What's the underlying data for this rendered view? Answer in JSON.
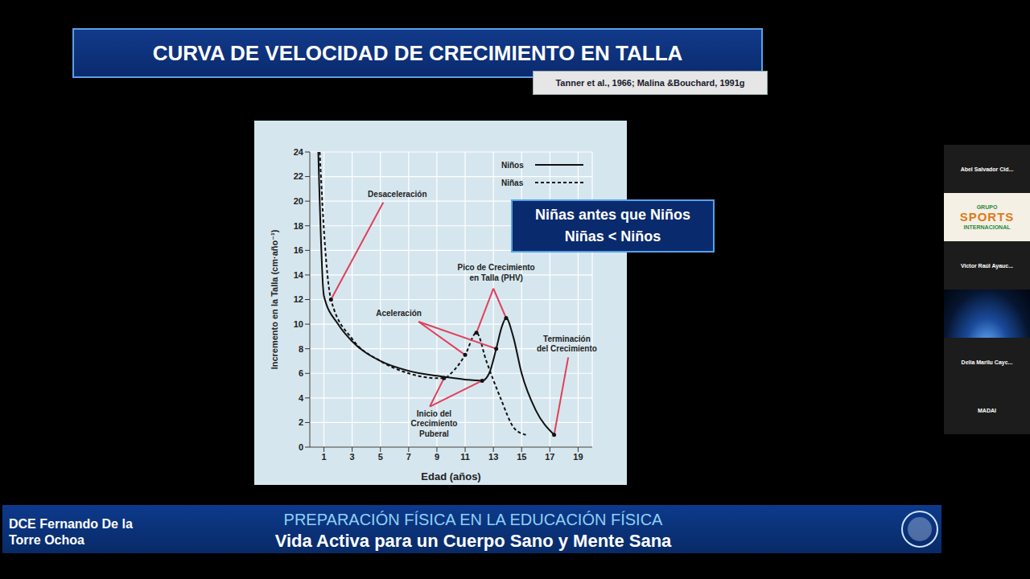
{
  "chart_data": {
    "type": "line",
    "title": "CURVA DE VELOCIDAD DE CRECIMIENTO EN TALLA",
    "x_label": "Edad (años)",
    "y_label": "Incremento en la Talla (cm·año⁻¹)",
    "xlim": [
      0,
      20
    ],
    "xticks": [
      1,
      3,
      5,
      7,
      9,
      11,
      13,
      15,
      17,
      19
    ],
    "ylim": [
      0,
      24
    ],
    "yticks": [
      0,
      2,
      4,
      6,
      8,
      10,
      12,
      14,
      16,
      18,
      20,
      22,
      24
    ],
    "grid": true,
    "legend": "top-right",
    "series": [
      {
        "name": "Niños",
        "color": "#111111",
        "line_style": "solid",
        "x": [
          0.6,
          1,
          2,
          3,
          5,
          7,
          9,
          11,
          12.2,
          12.7,
          13.2,
          13.6,
          13.9,
          14.4,
          15,
          16,
          17.3
        ],
        "values": [
          24,
          12.3,
          10,
          8.6,
          7,
          6.2,
          5.8,
          5.5,
          5.4,
          6,
          8,
          9.8,
          10.5,
          9,
          6,
          3,
          1
        ]
      },
      {
        "name": "Niñas",
        "color": "#111111",
        "line_style": "dashed",
        "x": [
          0.7,
          1.1,
          1.5,
          3,
          5,
          7,
          9,
          9.5,
          10,
          11,
          11.8,
          12.5,
          13.5,
          14.5,
          15.3
        ],
        "values": [
          24,
          16,
          12,
          8.8,
          7,
          6,
          5.6,
          5.6,
          6,
          7.5,
          9.3,
          7,
          4,
          1.5,
          1
        ]
      }
    ],
    "annotations": [
      "Desaceleración",
      "Aceleración",
      "Pico de Crecimiento\nen Talla (PHV)",
      "Inicio del\nCrecimiento\nPuberal",
      "Terminación\ndel Crecimiento"
    ]
  },
  "page": {
    "source": "Tanner et al., 1966; Malina &Bouchard, 1991g",
    "callout": [
      "Niñas antes que Niños",
      "Niñas < Niños"
    ],
    "presenter": "DCE Fernando De la Torre Ochoa",
    "footer_title": "PREPARACIÓN FÍSICA EN LA EDUCACIÓN FÍSICA",
    "footer_subtitle": "Vida Activa para un Cuerpo Sano y Mente Sana",
    "participants": [
      "Abel Salvador Cid...",
      "Victor Raúl Ayauc...",
      "Delia Marilu Cayc...",
      "MADAI"
    ],
    "logo": [
      "GRUPO",
      "SPORTS",
      "INTERNACIONAL"
    ]
  }
}
